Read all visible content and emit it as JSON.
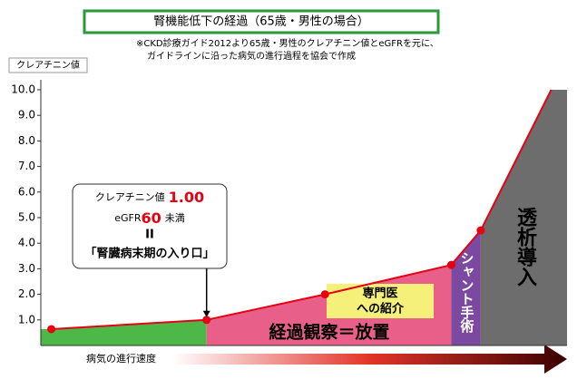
{
  "chart_data": {
    "type": "line",
    "title": "腎機能低下の経過（65歳・男性の場合）",
    "notes": [
      "※CKD診療ガイド2012より65歳・男性のクレアチニン値とeGFRを元に、",
      "ガイドラインに沿った病気の進行過程を協会で作成"
    ],
    "y_label": "クレアチニン値",
    "x_label": "病気の進行速度",
    "xlim": [
      0,
      100
    ],
    "ylim": [
      0,
      10
    ],
    "yticks": [
      {
        "value": 1,
        "label": "1.0"
      },
      {
        "value": 2,
        "label": "2.0"
      },
      {
        "value": 3,
        "label": "3.0"
      },
      {
        "value": 4,
        "label": "4.0"
      },
      {
        "value": 5,
        "label": "5.0"
      },
      {
        "value": 6,
        "label": "6.0"
      },
      {
        "value": 7,
        "label": "7.0"
      },
      {
        "value": 8,
        "label": "8.0"
      },
      {
        "value": 9,
        "label": "9.0"
      },
      {
        "value": 10,
        "label": "10.0"
      }
    ],
    "series": [
      {
        "color": "#e60012",
        "x": [
          2,
          31.5,
          54,
          78,
          83.6,
          97
        ],
        "values": [
          0.64,
          1.0,
          2.0,
          3.15,
          4.5,
          10.0
        ]
      }
    ],
    "regions": [
      {
        "x0": 0,
        "x1": 31.5,
        "color": "#4db848"
      },
      {
        "x0": 31.5,
        "x1": 78,
        "color": "#e8608a",
        "label": "経過観察＝放置"
      },
      {
        "x0": 78,
        "x1": 83.6,
        "color": "#7b4aa0",
        "label": "シャント手術"
      },
      {
        "x0": 83.6,
        "x1": 100,
        "color": "#6d6d6d",
        "label": "透析導入"
      }
    ],
    "callout": {
      "line1": "クレアチニン値",
      "value": "1.00",
      "egfr": "eGFR",
      "egfr_value": "60",
      "egfr_suffix": "未満",
      "equals": "II",
      "stage": "「腎臓病末期の入り口」"
    },
    "referral": [
      "専門医",
      "への紹介"
    ]
  }
}
